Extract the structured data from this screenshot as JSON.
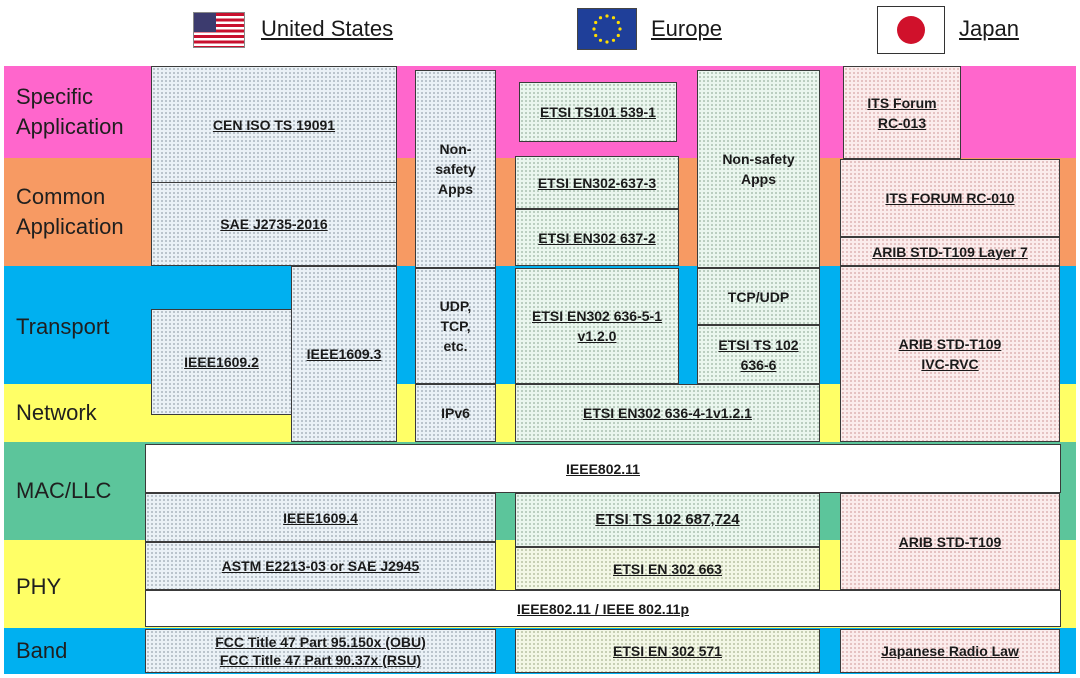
{
  "regions": {
    "us": "United States",
    "eu": "Europe",
    "jp": "Japan"
  },
  "layers": {
    "specific": "Specific Application",
    "common": "Common Application",
    "transport": "Transport",
    "network": "Network",
    "mac": "MAC/LLC",
    "phy": "PHY",
    "band": "Band"
  },
  "colors": {
    "specific": "#ff66cc",
    "common": "#f79a63",
    "transport": "#00b0f0",
    "network": "#ffff66",
    "mac": "#5cc59b",
    "phy": "#ffff66",
    "band": "#00b0f0"
  },
  "standards": {
    "us_cen": "CEN ISO TS 19091",
    "us_sae": "SAE J2735-2016",
    "us_nonsafety": "Non-safety Apps",
    "us_ieee16092": "IEEE1609.2",
    "us_ieee16093": "IEEE1609.3",
    "us_udp": "UDP, TCP, etc.",
    "us_ipv6": "IPv6",
    "eu_ts101": "ETSI TS101 539-1",
    "eu_en3": "ETSI EN302-637-3",
    "eu_en2": "ETSI EN302 637-2",
    "eu_nonsafety": "Non-safety Apps",
    "eu_636_5": "ETSI EN302 636-5-1 v1.2.0",
    "eu_tcp": "TCP/UDP",
    "eu_636_6": "ETSI TS 102 636-6",
    "eu_636_4": "ETSI EN302 636-4-1v1.2.1",
    "jp_rc013": "ITS Forum RC-013",
    "jp_rc010": "ITS FORUM RC-010",
    "jp_layer7": "ARIB STD-T109 Layer 7",
    "jp_ivc": "ARIB STD-T109 IVC-RVC",
    "ieee80211": "IEEE802.11",
    "us_ieee16094": "IEEE1609.4",
    "eu_687": "ETSI TS 102 687,724",
    "jp_t109": "ARIB STD-T109",
    "us_astm": "ASTM E2213-03 or SAE J2945",
    "eu_663": "ETSI EN 302 663",
    "ieee80211p": "IEEE802.11 / IEEE 802.11p",
    "us_fcc1": "FCC Title 47 Part 95.150x (OBU)",
    "us_fcc2": "FCC Title 47 Part 90.37x (RSU)",
    "eu_571": "ETSI EN 302 571",
    "jp_radio": "Japanese Radio Law"
  }
}
